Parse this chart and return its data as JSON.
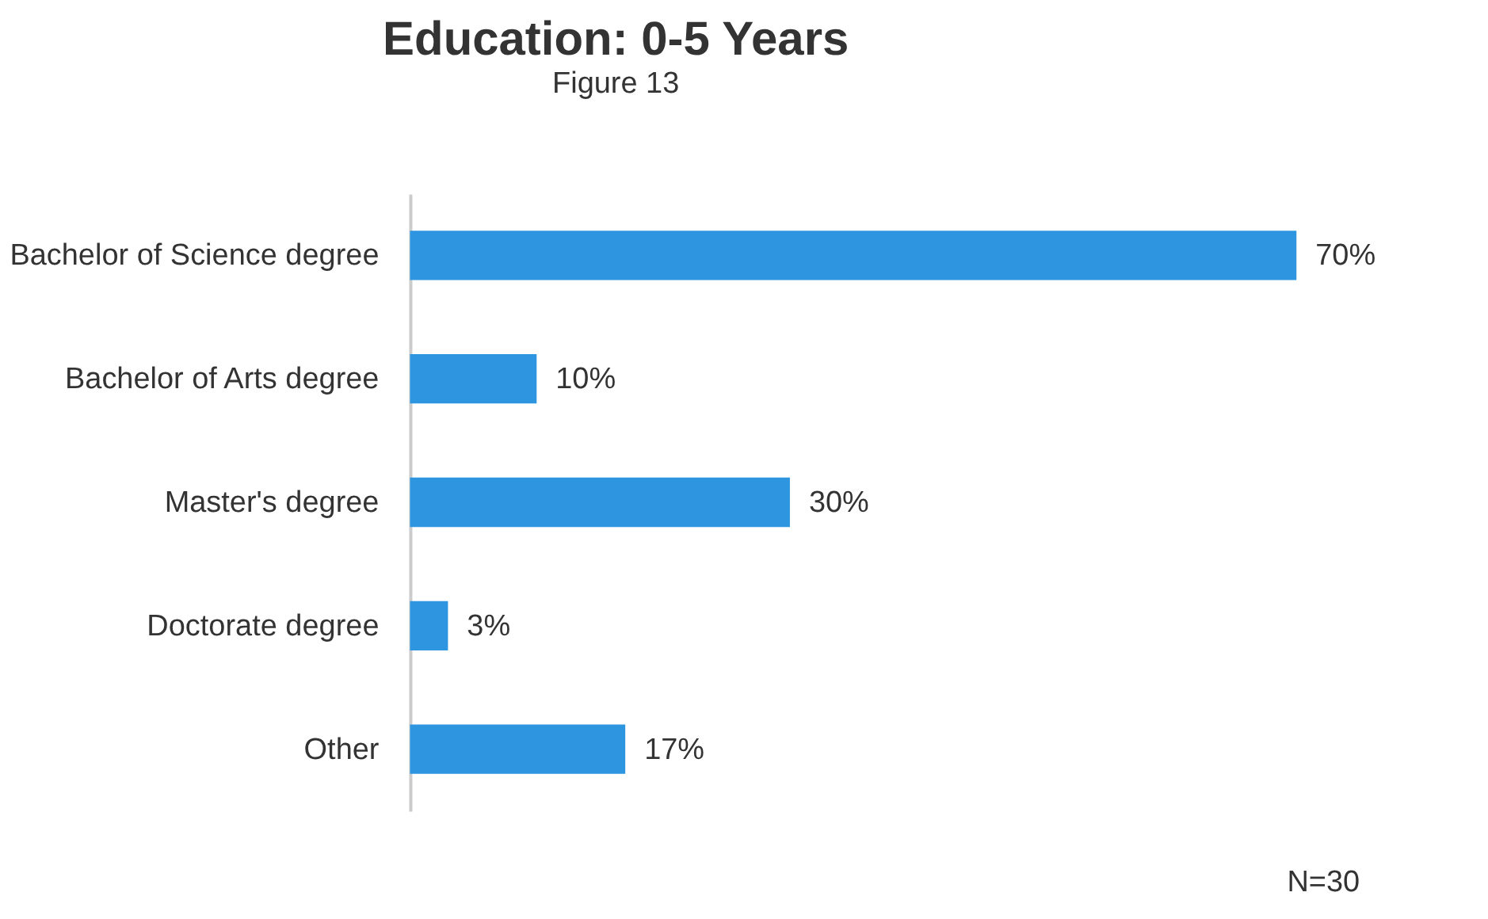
{
  "chart_data": {
    "type": "bar",
    "orientation": "horizontal",
    "title": "Education: 0-5 Years",
    "subtitle": "Figure 13",
    "categories": [
      "Bachelor of Science degree",
      "Bachelor of Arts degree",
      "Master's degree",
      "Doctorate degree",
      "Other"
    ],
    "values": [
      70,
      10,
      30,
      3,
      17
    ],
    "value_labels": [
      "70%",
      "10%",
      "30%",
      "3%",
      "17%"
    ],
    "color": "#2e96e0",
    "annotations": [
      "N=30"
    ]
  }
}
